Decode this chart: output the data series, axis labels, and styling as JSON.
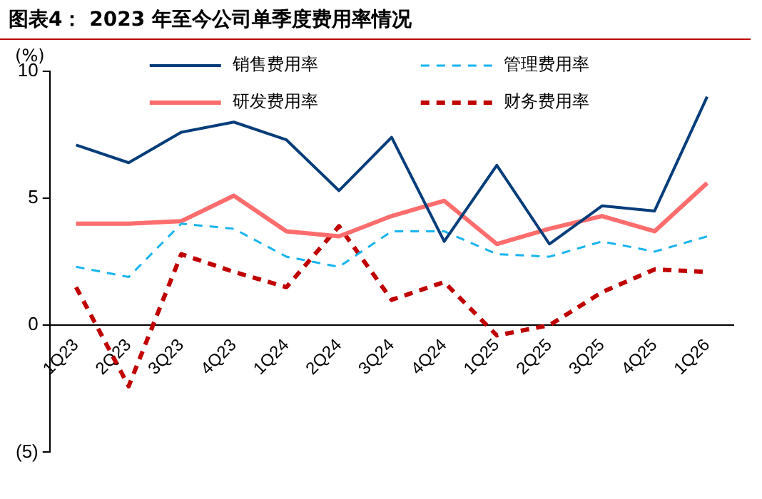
{
  "chart_data": {
    "type": "line",
    "title": "图表4： 2023 年至今公司单季度费用率情况",
    "ylabel": "(%)",
    "categories": [
      "1Q23",
      "2Q23",
      "3Q23",
      "4Q23",
      "1Q24",
      "2Q24",
      "3Q24",
      "4Q24",
      "1Q25",
      "2Q25",
      "3Q25",
      "4Q25",
      "1Q26"
    ],
    "series": [
      {
        "name": "销售费用率",
        "color": "#063d7a",
        "line_style": "solid",
        "values": [
          7.1,
          6.4,
          7.6,
          8.0,
          7.3,
          5.3,
          7.4,
          3.3,
          6.3,
          3.2,
          4.7,
          4.5,
          9.0
        ]
      },
      {
        "name": "管理费用率",
        "color": "#19b4ee",
        "line_style": "dashed",
        "values": [
          2.3,
          1.9,
          4.0,
          3.8,
          2.7,
          2.3,
          3.7,
          3.7,
          2.8,
          2.7,
          3.3,
          2.9,
          3.5
        ]
      },
      {
        "name": "研发费用率",
        "color": "#fd6d6d",
        "line_style": "solid",
        "values": [
          4.0,
          4.0,
          4.1,
          5.1,
          3.7,
          3.5,
          4.3,
          4.9,
          3.2,
          3.8,
          4.3,
          3.7,
          5.6
        ]
      },
      {
        "name": "财务费用率",
        "color": "#c00000",
        "line_style": "dashed",
        "values": [
          1.5,
          -2.4,
          2.8,
          2.1,
          1.5,
          3.9,
          1.0,
          1.7,
          -0.4,
          0.0,
          1.3,
          2.2,
          2.1
        ]
      }
    ],
    "ylim": [
      -5,
      10
    ],
    "yticks": [
      {
        "value": -5,
        "label": "(5)"
      },
      0,
      5,
      10
    ],
    "grid": false,
    "legend": "top",
    "marker": "none"
  }
}
